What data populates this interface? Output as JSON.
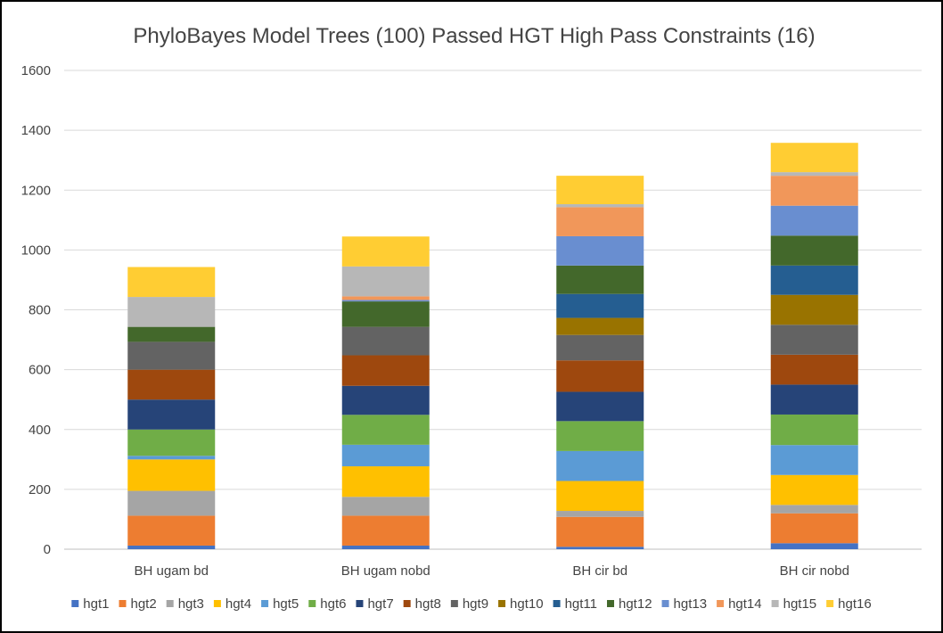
{
  "chart_data": {
    "type": "bar",
    "stacked": true,
    "title": "PhyloBayes Model Trees (100) Passed HGT High Pass Constraints (16)",
    "xlabel": "",
    "ylabel": "",
    "ylim": [
      0,
      1600
    ],
    "yticks": [
      "0",
      "200",
      "400",
      "600",
      "800",
      "1000",
      "1200",
      "1400",
      "1600"
    ],
    "grid": true,
    "legend_position": "bottom",
    "categories": [
      "BH ugam bd",
      "BH ugam nobd",
      "BH cir bd",
      "BH cir nobd"
    ],
    "series": [
      {
        "name": "hgt1",
        "color": "#4472C4",
        "values": [
          12,
          12,
          8,
          20
        ]
      },
      {
        "name": "hgt2",
        "color": "#ED7D31",
        "values": [
          100,
          100,
          100,
          100
        ]
      },
      {
        "name": "hgt3",
        "color": "#A5A5A5",
        "values": [
          83,
          63,
          20,
          28
        ]
      },
      {
        "name": "hgt4",
        "color": "#FFC000",
        "values": [
          105,
          102,
          100,
          100
        ]
      },
      {
        "name": "hgt5",
        "color": "#5B9BD5",
        "values": [
          12,
          72,
          100,
          100
        ]
      },
      {
        "name": "hgt6",
        "color": "#70AD47",
        "values": [
          88,
          100,
          100,
          102
        ]
      },
      {
        "name": "hgt7",
        "color": "#264478",
        "values": [
          100,
          97,
          98,
          100
        ]
      },
      {
        "name": "hgt8",
        "color": "#9E480E",
        "values": [
          100,
          102,
          105,
          100
        ]
      },
      {
        "name": "hgt9",
        "color": "#636363",
        "values": [
          93,
          95,
          85,
          100
        ]
      },
      {
        "name": "hgt10",
        "color": "#997300",
        "values": [
          0,
          0,
          57,
          100
        ]
      },
      {
        "name": "hgt11",
        "color": "#255E91",
        "values": [
          0,
          0,
          80,
          98
        ]
      },
      {
        "name": "hgt12",
        "color": "#43682B",
        "values": [
          50,
          85,
          95,
          100
        ]
      },
      {
        "name": "hgt13",
        "color": "#698ED0",
        "values": [
          0,
          5,
          98,
          100
        ]
      },
      {
        "name": "hgt14",
        "color": "#F1975A",
        "values": [
          0,
          12,
          97,
          100
        ]
      },
      {
        "name": "hgt15",
        "color": "#B7B7B7",
        "values": [
          100,
          100,
          10,
          12
        ]
      },
      {
        "name": "hgt16",
        "color": "#FFCD33",
        "values": [
          100,
          100,
          95,
          98
        ]
      }
    ]
  }
}
